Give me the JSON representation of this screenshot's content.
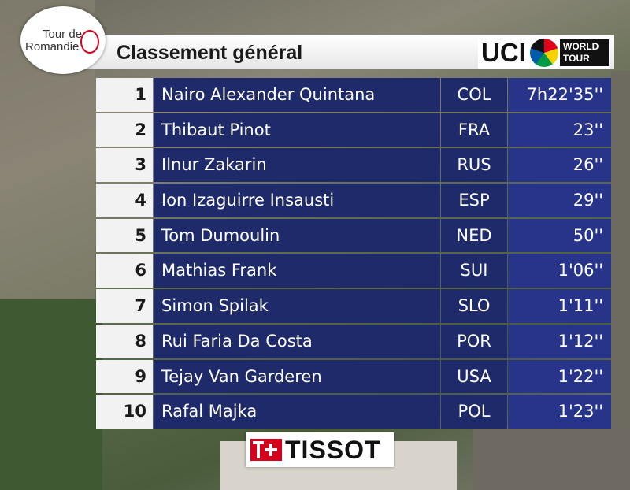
{
  "header": {
    "logo_top": "Tour de",
    "logo_bottom": "Romandie",
    "title": "Classement général",
    "uci": "UCI",
    "world": "WORLD",
    "tour": "TOUR"
  },
  "table": {
    "rows": [
      [
        "1",
        "Nairo Alexander Quintana",
        "COL",
        "7h22'35''"
      ],
      [
        "2",
        "Thibaut Pinot",
        "FRA",
        "23''"
      ],
      [
        "3",
        "Ilnur Zakarin",
        "RUS",
        "26''"
      ],
      [
        "4",
        "Ion Izaguirre Insausti",
        "ESP",
        "29''"
      ],
      [
        "5",
        "Tom Dumoulin",
        "NED",
        "50''"
      ],
      [
        "6",
        "Mathias Frank",
        "SUI",
        "1'06''"
      ],
      [
        "7",
        "Simon Spilak",
        "SLO",
        "1'11''"
      ],
      [
        "8",
        "Rui Faria Da Costa",
        "POR",
        "1'12''"
      ],
      [
        "9",
        "Tejay Van Garderen",
        "USA",
        "1'22''"
      ],
      [
        "10",
        "Rafal Majka",
        "POL",
        "1'23''"
      ]
    ]
  },
  "sponsor": "TISSOT"
}
